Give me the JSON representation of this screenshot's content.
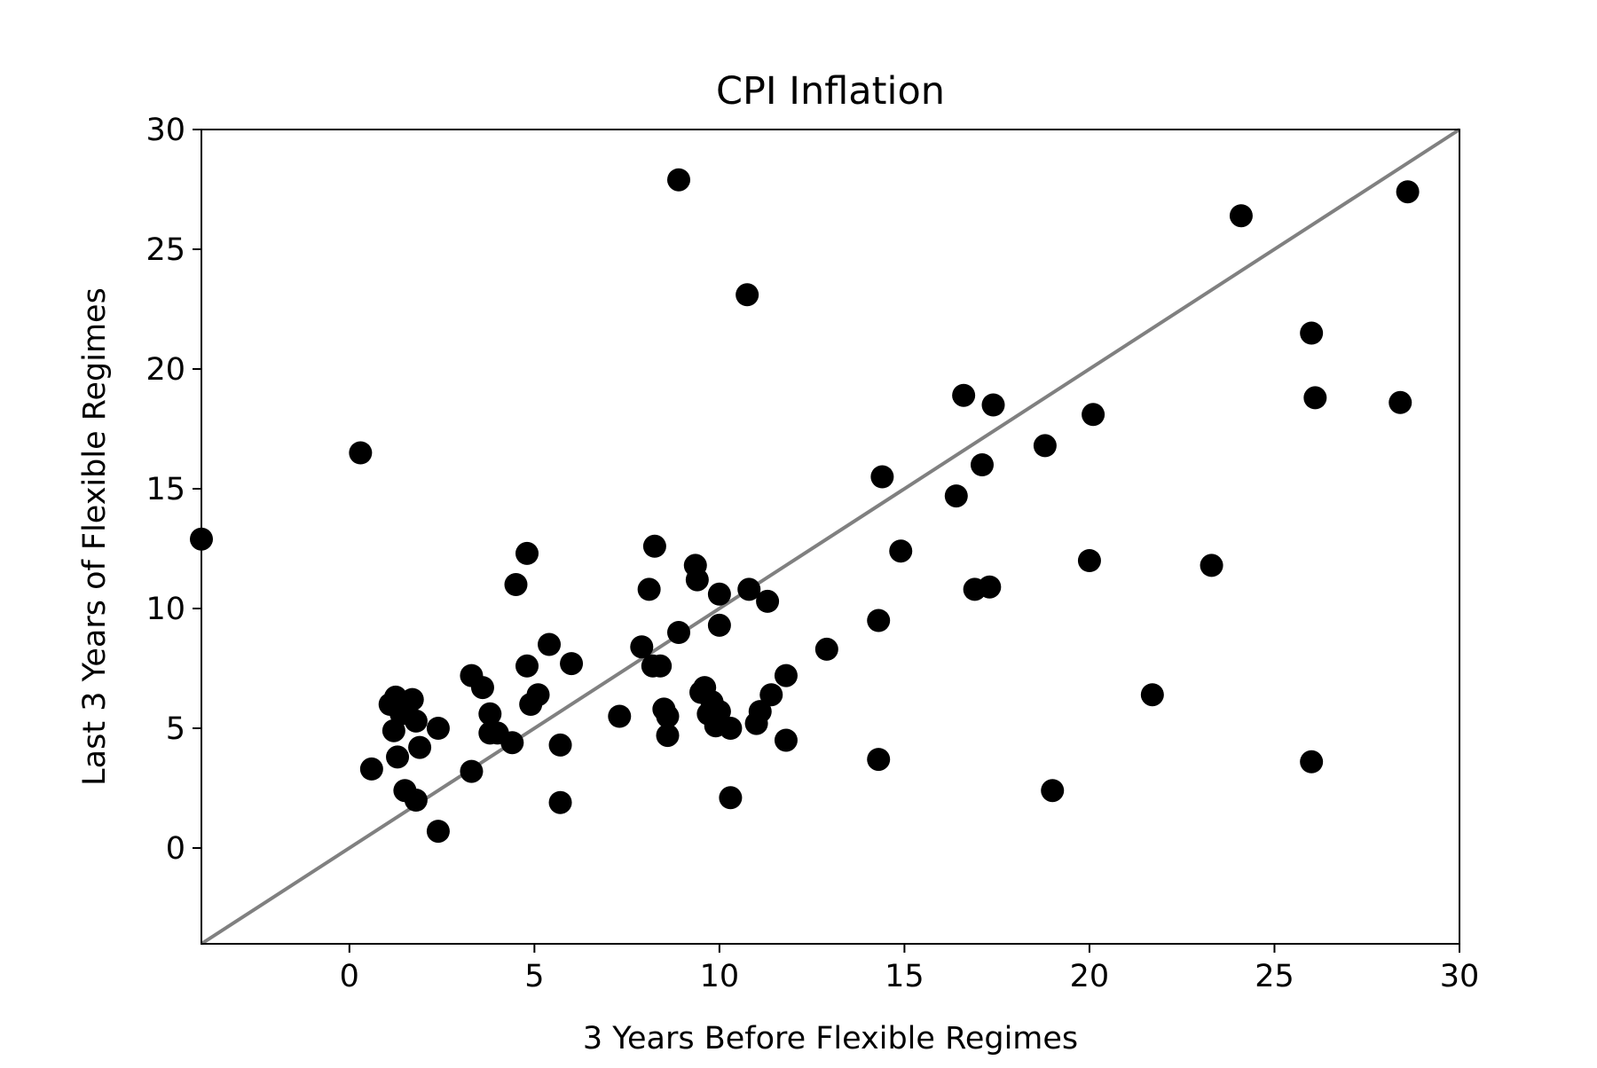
{
  "chart_data": {
    "type": "scatter",
    "title": "CPI Inflation",
    "xlabel": "3 Years Before Flexible Regimes",
    "ylabel": "Last 3 Years of Flexible Regimes",
    "xlim": [
      -4,
      30
    ],
    "ylim": [
      -4,
      30
    ],
    "xticks": [
      0,
      5,
      10,
      15,
      20,
      25,
      30
    ],
    "yticks": [
      0,
      5,
      10,
      15,
      20,
      25,
      30
    ],
    "grid": false,
    "legend": "none",
    "reference_line": {
      "from": [
        -4,
        -4
      ],
      "to": [
        30,
        30
      ],
      "color": "#808080"
    },
    "marker_color": "#000000",
    "points": [
      [
        -4.0,
        12.9
      ],
      [
        0.3,
        16.5
      ],
      [
        0.6,
        3.3
      ],
      [
        1.1,
        6.0
      ],
      [
        1.2,
        4.9
      ],
      [
        1.25,
        6.3
      ],
      [
        1.3,
        3.8
      ],
      [
        1.4,
        5.6
      ],
      [
        1.5,
        2.4
      ],
      [
        1.7,
        6.2
      ],
      [
        1.8,
        2.0
      ],
      [
        1.8,
        5.3
      ],
      [
        1.9,
        4.2
      ],
      [
        2.4,
        5.0
      ],
      [
        2.4,
        0.7
      ],
      [
        3.3,
        3.2
      ],
      [
        3.3,
        7.2
      ],
      [
        3.6,
        6.7
      ],
      [
        3.8,
        5.6
      ],
      [
        3.8,
        4.8
      ],
      [
        4.0,
        4.8
      ],
      [
        4.4,
        4.4
      ],
      [
        4.5,
        11.0
      ],
      [
        4.8,
        12.3
      ],
      [
        4.8,
        7.6
      ],
      [
        4.9,
        6.0
      ],
      [
        5.1,
        6.4
      ],
      [
        5.4,
        8.5
      ],
      [
        5.7,
        4.3
      ],
      [
        5.7,
        1.9
      ],
      [
        6.0,
        7.7
      ],
      [
        7.3,
        5.5
      ],
      [
        7.9,
        8.4
      ],
      [
        8.1,
        10.8
      ],
      [
        8.2,
        7.6
      ],
      [
        8.25,
        12.6
      ],
      [
        8.4,
        7.6
      ],
      [
        8.5,
        5.8
      ],
      [
        8.6,
        5.5
      ],
      [
        8.6,
        4.7
      ],
      [
        8.9,
        9.0
      ],
      [
        8.9,
        27.9
      ],
      [
        9.35,
        11.8
      ],
      [
        9.4,
        11.2
      ],
      [
        9.5,
        6.5
      ],
      [
        9.6,
        6.7
      ],
      [
        9.7,
        5.6
      ],
      [
        9.8,
        6.1
      ],
      [
        9.9,
        5.1
      ],
      [
        10.0,
        5.7
      ],
      [
        10.0,
        10.6
      ],
      [
        10.0,
        9.3
      ],
      [
        10.3,
        5.0
      ],
      [
        10.3,
        2.1
      ],
      [
        10.75,
        23.1
      ],
      [
        10.8,
        10.8
      ],
      [
        11.0,
        5.2
      ],
      [
        11.1,
        5.7
      ],
      [
        11.3,
        10.3
      ],
      [
        11.4,
        6.4
      ],
      [
        11.8,
        7.2
      ],
      [
        11.8,
        4.5
      ],
      [
        12.9,
        8.3
      ],
      [
        14.3,
        3.7
      ],
      [
        14.3,
        9.5
      ],
      [
        14.4,
        15.5
      ],
      [
        14.9,
        12.4
      ],
      [
        16.4,
        14.7
      ],
      [
        16.6,
        18.9
      ],
      [
        16.9,
        10.8
      ],
      [
        17.1,
        16.0
      ],
      [
        17.3,
        10.9
      ],
      [
        17.4,
        18.5
      ],
      [
        18.8,
        16.8
      ],
      [
        19.0,
        2.4
      ],
      [
        20.0,
        12.0
      ],
      [
        20.1,
        18.1
      ],
      [
        21.7,
        6.4
      ],
      [
        23.3,
        11.8
      ],
      [
        24.1,
        26.4
      ],
      [
        26.0,
        3.6
      ],
      [
        26.0,
        21.5
      ],
      [
        26.1,
        18.8
      ],
      [
        28.4,
        18.6
      ],
      [
        28.6,
        27.4
      ]
    ]
  }
}
